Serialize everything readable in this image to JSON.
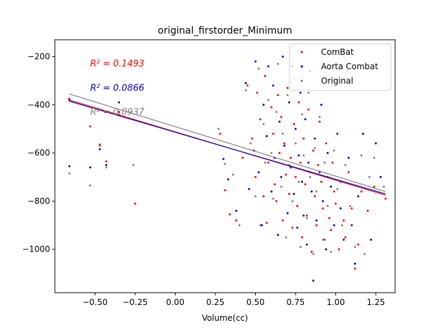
{
  "chart_data": {
    "type": "scatter",
    "title": "original_firstorder_Minimum",
    "xlabel": "Volume(cc)",
    "ylabel": "",
    "xlim": [
      -0.75,
      1.37
    ],
    "ylim": [
      -1180,
      -130
    ],
    "xticks": [
      -0.5,
      -0.25,
      0.0,
      0.25,
      0.5,
      0.75,
      1.0,
      1.25
    ],
    "xtick_labels": [
      "−0.50",
      "−0.25",
      "0.00",
      "0.25",
      "0.50",
      "0.75",
      "1.00",
      "1.25"
    ],
    "yticks": [
      -1000,
      -800,
      -600,
      -400,
      -200
    ],
    "ytick_labels": [
      "−1000",
      "−800",
      "−600",
      "−400",
      "−200"
    ],
    "grid": false,
    "legend_position": "top-right",
    "annotations": [
      {
        "text": "R² = 0.1493",
        "color": "#ff0000",
        "x": -0.53,
        "y": -230
      },
      {
        "text": "R² = 0.0866",
        "color": "#0000cc",
        "x": -0.53,
        "y": -330
      },
      {
        "text": "R² = 0.0937",
        "color": "#808080",
        "x": -0.53,
        "y": -430
      }
    ],
    "series": [
      {
        "name": "ComBat",
        "color": "#ff0000",
        "fit": [
          [
            -0.66,
            -380
          ],
          [
            1.31,
            -775
          ]
        ],
        "points": [
          [
            -0.66,
            -375
          ],
          [
            -0.53,
            -490
          ],
          [
            -0.47,
            -565
          ],
          [
            -0.43,
            -635
          ],
          [
            -0.35,
            -430
          ],
          [
            -0.25,
            -810
          ],
          [
            0.28,
            -520
          ],
          [
            0.31,
            -755
          ],
          [
            0.34,
            -855
          ],
          [
            0.38,
            -880
          ],
          [
            0.42,
            -620
          ],
          [
            0.45,
            -320
          ],
          [
            0.48,
            -540
          ],
          [
            0.5,
            -700
          ],
          [
            0.51,
            -350
          ],
          [
            0.53,
            -460
          ],
          [
            0.55,
            -780
          ],
          [
            0.56,
            -280
          ],
          [
            0.57,
            -890
          ],
          [
            0.58,
            -640
          ],
          [
            0.6,
            -410
          ],
          [
            0.61,
            -520
          ],
          [
            0.62,
            -730
          ],
          [
            0.63,
            -800
          ],
          [
            0.64,
            -360
          ],
          [
            0.65,
            -600
          ],
          [
            0.66,
            -450
          ],
          [
            0.67,
            -880
          ],
          [
            0.68,
            -560
          ],
          [
            0.69,
            -690
          ],
          [
            0.7,
            -330
          ],
          [
            0.71,
            -770
          ],
          [
            0.72,
            -620
          ],
          [
            0.73,
            -910
          ],
          [
            0.74,
            -480
          ],
          [
            0.75,
            -700
          ],
          [
            0.76,
            -820
          ],
          [
            0.77,
            -390
          ],
          [
            0.78,
            -640
          ],
          [
            0.79,
            -950
          ],
          [
            0.8,
            -540
          ],
          [
            0.81,
            -730
          ],
          [
            0.82,
            -860
          ],
          [
            0.83,
            -420
          ],
          [
            0.84,
            -680
          ],
          [
            0.85,
            -1010
          ],
          [
            0.86,
            -590
          ],
          [
            0.87,
            -780
          ],
          [
            0.88,
            -900
          ],
          [
            0.89,
            -650
          ],
          [
            0.9,
            -470
          ],
          [
            0.91,
            -720
          ],
          [
            0.92,
            -830
          ],
          [
            0.93,
            -960
          ],
          [
            0.94,
            -560
          ],
          [
            0.95,
            -700
          ],
          [
            0.96,
            -870
          ],
          [
            0.97,
            -920
          ],
          [
            0.98,
            -640
          ],
          [
            0.99,
            -760
          ],
          [
            1.0,
            -810
          ],
          [
            1.02,
            -1000
          ],
          [
            1.03,
            -720
          ],
          [
            1.05,
            -880
          ],
          [
            1.06,
            -950
          ],
          [
            1.08,
            -680
          ],
          [
            1.1,
            -830
          ],
          [
            1.12,
            -1080
          ],
          [
            1.14,
            -980
          ],
          [
            1.16,
            -760
          ],
          [
            1.2,
            -840
          ],
          [
            1.24,
            -740
          ],
          [
            1.31,
            -790
          ]
        ]
      },
      {
        "name": "Aorta Combat",
        "color": "#0000cc",
        "fit": [
          [
            -0.66,
            -385
          ],
          [
            1.31,
            -770
          ]
        ],
        "points": [
          [
            -0.66,
            -655
          ],
          [
            -0.66,
            -380
          ],
          [
            -0.53,
            -660
          ],
          [
            -0.47,
            -585
          ],
          [
            -0.43,
            -650
          ],
          [
            -0.35,
            -390
          ],
          [
            0.3,
            -625
          ],
          [
            0.33,
            -710
          ],
          [
            0.38,
            -840
          ],
          [
            0.44,
            -310
          ],
          [
            0.46,
            -750
          ],
          [
            0.49,
            -590
          ],
          [
            0.5,
            -220
          ],
          [
            0.52,
            -680
          ],
          [
            0.54,
            -900
          ],
          [
            0.55,
            -400
          ],
          [
            0.57,
            -530
          ],
          [
            0.58,
            -240
          ],
          [
            0.6,
            -760
          ],
          [
            0.61,
            -320
          ],
          [
            0.62,
            -620
          ],
          [
            0.64,
            -940
          ],
          [
            0.65,
            -470
          ],
          [
            0.66,
            -700
          ],
          [
            0.67,
            -200
          ],
          [
            0.68,
            -570
          ],
          [
            0.7,
            -850
          ],
          [
            0.71,
            -390
          ],
          [
            0.72,
            -660
          ],
          [
            0.73,
            -240
          ],
          [
            0.74,
            -770
          ],
          [
            0.75,
            -500
          ],
          [
            0.76,
            -910
          ],
          [
            0.77,
            -610
          ],
          [
            0.78,
            -350
          ],
          [
            0.79,
            -720
          ],
          [
            0.8,
            -860
          ],
          [
            0.81,
            -460
          ],
          [
            0.82,
            -980
          ],
          [
            0.83,
            -640
          ],
          [
            0.84,
            -260
          ],
          [
            0.85,
            -760
          ],
          [
            0.86,
            -1130
          ],
          [
            0.87,
            -540
          ],
          [
            0.88,
            -880
          ],
          [
            0.9,
            -680
          ],
          [
            0.91,
            -400
          ],
          [
            0.92,
            -800
          ],
          [
            0.94,
            -1000
          ],
          [
            0.95,
            -600
          ],
          [
            0.97,
            -740
          ],
          [
            0.99,
            -900
          ],
          [
            1.01,
            -520
          ],
          [
            1.03,
            -830
          ],
          [
            1.05,
            -960
          ],
          [
            1.08,
            -620
          ],
          [
            1.1,
            -900
          ],
          [
            1.12,
            -1060
          ],
          [
            1.14,
            -780
          ],
          [
            1.17,
            -520
          ],
          [
            1.22,
            -960
          ],
          [
            1.25,
            -560
          ],
          [
            1.28,
            -700
          ]
        ]
      },
      {
        "name": "Original",
        "color": "#808080",
        "fit": [
          [
            -0.66,
            -355
          ],
          [
            1.31,
            -760
          ]
        ],
        "points": [
          [
            -0.66,
            -685
          ],
          [
            -0.53,
            -735
          ],
          [
            -0.47,
            -570
          ],
          [
            -0.43,
            -660
          ],
          [
            -0.35,
            -440
          ],
          [
            -0.26,
            -650
          ],
          [
            0.27,
            -500
          ],
          [
            0.31,
            -645
          ],
          [
            0.36,
            -690
          ],
          [
            0.4,
            -900
          ],
          [
            0.44,
            -340
          ],
          [
            0.47,
            -560
          ],
          [
            0.5,
            -780
          ],
          [
            0.52,
            -250
          ],
          [
            0.53,
            -900
          ],
          [
            0.55,
            -480
          ],
          [
            0.56,
            -640
          ],
          [
            0.58,
            -380
          ],
          [
            0.6,
            -600
          ],
          [
            0.61,
            -790
          ],
          [
            0.63,
            -430
          ],
          [
            0.64,
            -230
          ],
          [
            0.66,
            -740
          ],
          [
            0.67,
            -520
          ],
          [
            0.69,
            -950
          ],
          [
            0.7,
            -360
          ],
          [
            0.71,
            -650
          ],
          [
            0.73,
            -800
          ],
          [
            0.74,
            -290
          ],
          [
            0.75,
            -560
          ],
          [
            0.77,
            -720
          ],
          [
            0.78,
            -990
          ],
          [
            0.79,
            -440
          ],
          [
            0.8,
            -610
          ],
          [
            0.82,
            -870
          ],
          [
            0.83,
            -350
          ],
          [
            0.84,
            -700
          ],
          [
            0.86,
            -1020
          ],
          [
            0.87,
            -580
          ],
          [
            0.88,
            -760
          ],
          [
            0.9,
            -450
          ],
          [
            0.92,
            -960
          ],
          [
            0.93,
            -640
          ],
          [
            0.95,
            -820
          ],
          [
            0.97,
            -1010
          ],
          [
            0.99,
            -590
          ],
          [
            1.01,
            -750
          ],
          [
            1.04,
            -900
          ],
          [
            1.06,
            -650
          ],
          [
            1.09,
            -820
          ],
          [
            1.12,
            -990
          ],
          [
            1.16,
            -610
          ],
          [
            1.18,
            -1020
          ],
          [
            1.21,
            -700
          ],
          [
            1.24,
            -620
          ],
          [
            1.3,
            -740
          ]
        ]
      }
    ]
  }
}
